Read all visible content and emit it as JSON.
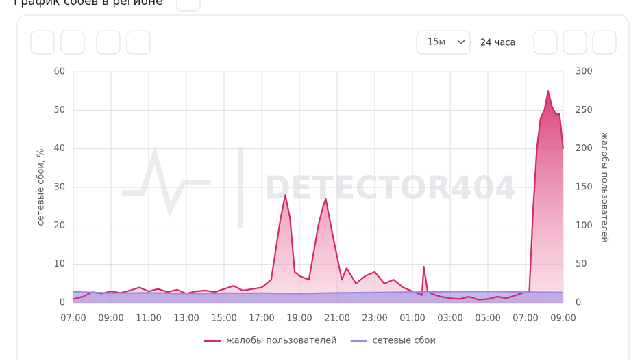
{
  "header": {
    "title": "График сбоев в регионе"
  },
  "toolbar": {
    "interval": "15м",
    "range": "24 часа"
  },
  "watermark": "DETECTOR404",
  "chart_data": {
    "type": "area",
    "ylabel": "сетевые сбои, %",
    "y2label": "жалобы пользователей",
    "xlim": [
      0,
      26
    ],
    "xticks": [
      {
        "value": 0,
        "label": "07:00"
      },
      {
        "value": 2,
        "label": "09:00"
      },
      {
        "value": 4,
        "label": "11:00"
      },
      {
        "value": 6,
        "label": "13:00"
      },
      {
        "value": 8,
        "label": "15:00"
      },
      {
        "value": 10,
        "label": "17:00"
      },
      {
        "value": 12,
        "label": "19:00"
      },
      {
        "value": 14,
        "label": "21:00"
      },
      {
        "value": 16,
        "label": "23:00"
      },
      {
        "value": 18,
        "label": "01:00"
      },
      {
        "value": 20,
        "label": "03:00"
      },
      {
        "value": 22,
        "label": "05:00"
      },
      {
        "value": 24,
        "label": "07:00"
      },
      {
        "value": 26,
        "label": "09:00"
      }
    ],
    "ylim": [
      0,
      60
    ],
    "yticks": [
      0,
      10,
      20,
      30,
      40,
      50,
      60
    ],
    "y2lim": [
      0,
      300
    ],
    "y2ticks": [
      0,
      50,
      100,
      150,
      200,
      250,
      300
    ],
    "grid": true,
    "series": [
      {
        "name": "жалобы пользователей",
        "color": "#d4296b",
        "axis": "y2",
        "x": [
          0,
          0.5,
          1,
          1.5,
          2,
          2.5,
          3,
          3.5,
          4,
          4.5,
          5,
          5.5,
          6,
          6.5,
          7,
          7.5,
          8,
          8.5,
          9,
          9.5,
          10,
          10.5,
          11,
          11.25,
          11.5,
          11.75,
          12,
          12.5,
          13,
          13.25,
          13.4,
          13.75,
          14,
          14.25,
          14.5,
          15,
          15.5,
          16,
          16.5,
          17,
          17.5,
          18,
          18.5,
          18.6,
          18.8,
          19,
          19.5,
          20,
          20.5,
          21,
          21.5,
          22,
          22.5,
          23,
          23.5,
          24,
          24.2,
          24.4,
          24.6,
          24.8,
          25,
          25.2,
          25.4,
          25.6,
          25.8,
          26
        ],
        "values": [
          5,
          8,
          14,
          12,
          15,
          13,
          16,
          20,
          15,
          18,
          14,
          17,
          12,
          15,
          16,
          14,
          18,
          22,
          16,
          18,
          20,
          30,
          110,
          140,
          110,
          40,
          35,
          30,
          100,
          125,
          135,
          90,
          60,
          30,
          45,
          25,
          35,
          40,
          25,
          30,
          20,
          15,
          10,
          47,
          15,
          12,
          8,
          6,
          5,
          8,
          4,
          5,
          8,
          6,
          10,
          14,
          15,
          120,
          200,
          240,
          250,
          275,
          255,
          245,
          245,
          200
        ]
      },
      {
        "name": "сетевые сбои",
        "color": "#9b8ae0",
        "x": [
          0,
          2,
          4,
          6,
          8,
          10,
          12,
          14,
          16,
          18,
          20,
          22,
          24,
          26
        ],
        "values": [
          2.9,
          2.5,
          2.6,
          2.4,
          2.5,
          2.5,
          2.4,
          2.6,
          2.7,
          2.8,
          2.9,
          3.0,
          2.8,
          2.7
        ]
      }
    ]
  }
}
